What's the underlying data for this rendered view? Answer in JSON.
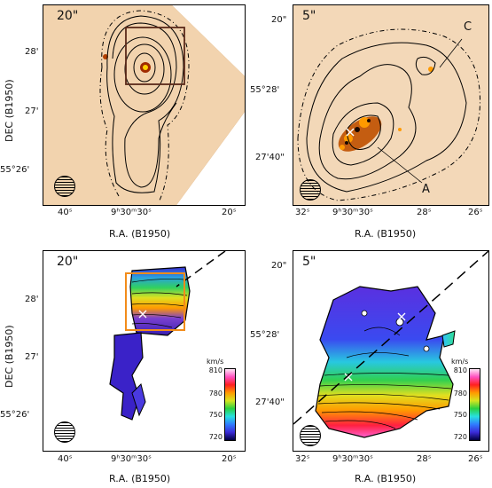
{
  "panels": {
    "tl": {
      "scale": "20\"",
      "xticks": [
        "40ˢ",
        "9ʰ30ᵐ30ˢ",
        "20ˢ"
      ],
      "yticks": [
        "28'",
        "27'",
        "55°26'"
      ]
    },
    "tr": {
      "scale": "5\"",
      "xticks": [
        "32ˢ",
        "9ʰ30ᵐ30ˢ",
        "28ˢ",
        "26ˢ"
      ],
      "yticks": [
        "20\"",
        "55°28'",
        "27'40\""
      ],
      "labels": {
        "a": "A",
        "c": "C"
      }
    },
    "bl": {
      "scale": "20\"",
      "xticks": [
        "40ˢ",
        "9ʰ30ᵐ30ˢ",
        "20ˢ"
      ],
      "yticks": [
        "28'",
        "27'",
        "55°26'"
      ],
      "colorbar": {
        "unit": "km/s",
        "ticks": [
          "810",
          "780",
          "750",
          "720"
        ]
      }
    },
    "br": {
      "scale": "5\"",
      "xticks": [
        "32ˢ",
        "9ʰ30ᵐ30ˢ",
        "28ˢ",
        "26ˢ"
      ],
      "yticks": [
        "20\"",
        "55°28'",
        "27'40\""
      ],
      "colorbar": {
        "unit": "km/s",
        "ticks": [
          "810",
          "780",
          "750",
          "720"
        ]
      }
    }
  },
  "axes": {
    "xlabel": "R.A. (B1950)",
    "ylabel": "DEC (B1950)"
  },
  "colors": {
    "optical": "#f4d2a8",
    "box": "#f28c1a"
  }
}
